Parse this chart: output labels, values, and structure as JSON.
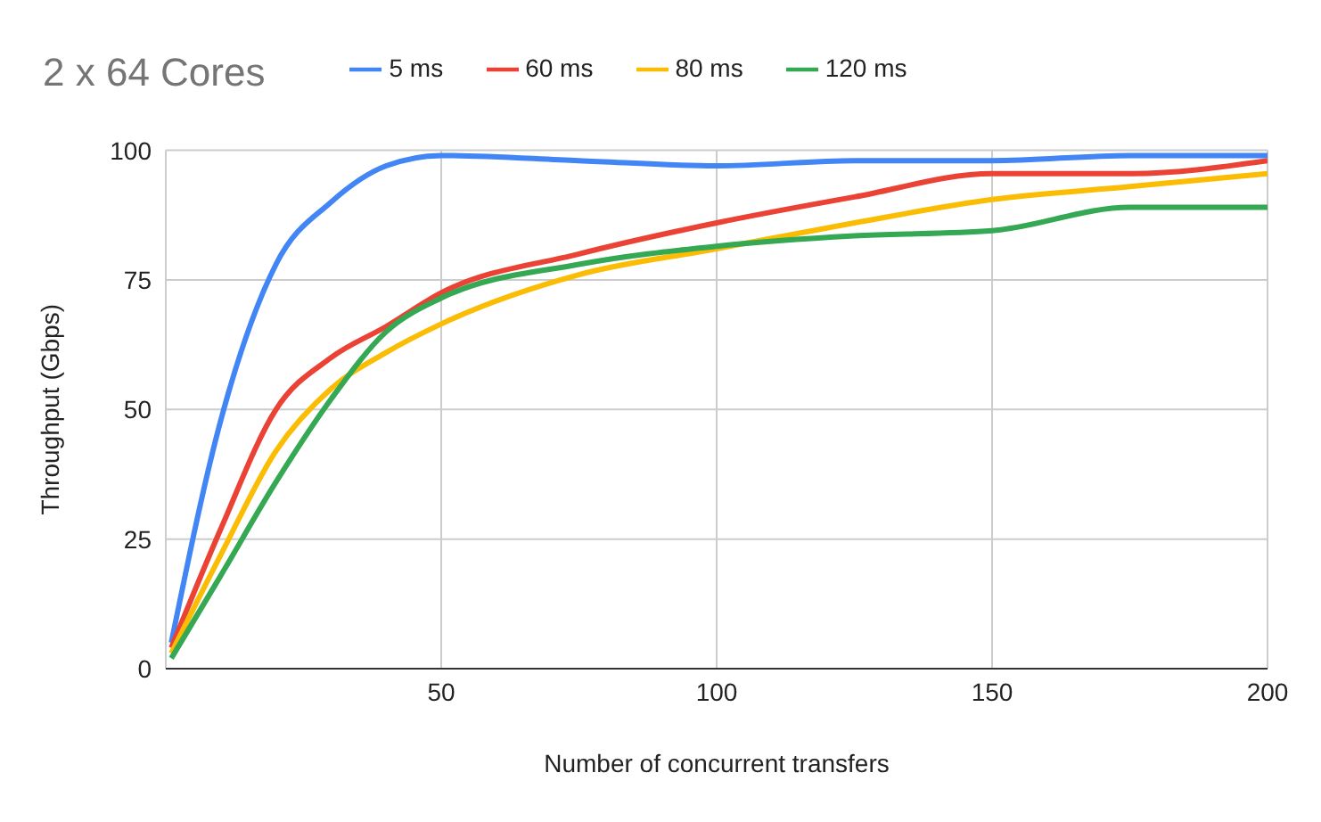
{
  "chart_data": {
    "type": "line",
    "title": "2 x 64 Cores",
    "xlabel": "Number of concurrent transfers",
    "ylabel": "Throughput (Gbps)",
    "x": [
      1,
      10,
      20,
      30,
      40,
      50,
      75,
      100,
      125,
      150,
      175,
      200
    ],
    "series": [
      {
        "name": "5 ms",
        "color": "#4285f4",
        "values": [
          5,
          48,
          78,
          90,
          97,
          99,
          98,
          97,
          98,
          98,
          99,
          99
        ]
      },
      {
        "name": "60 ms",
        "color": "#ea4335",
        "values": [
          4,
          27,
          50,
          60,
          66,
          72.5,
          80,
          86,
          91,
          95.5,
          95.5,
          98
        ]
      },
      {
        "name": "80 ms",
        "color": "#fbbc04",
        "values": [
          3,
          22,
          42,
          54,
          61,
          66.5,
          76,
          81,
          86,
          90.5,
          93,
          95.5
        ]
      },
      {
        "name": "120 ms",
        "color": "#34a853",
        "values": [
          2,
          18,
          36,
          52,
          65,
          71.5,
          78,
          81.5,
          83.5,
          84.5,
          89,
          89
        ]
      }
    ],
    "xlim": [
      0,
      200
    ],
    "xticks": [
      50,
      100,
      150,
      200
    ],
    "ylim": [
      0,
      100
    ],
    "yticks": [
      0,
      25,
      50,
      75,
      100
    ],
    "grid": true,
    "legend": "top",
    "marker": "none",
    "line_style": "solid"
  }
}
